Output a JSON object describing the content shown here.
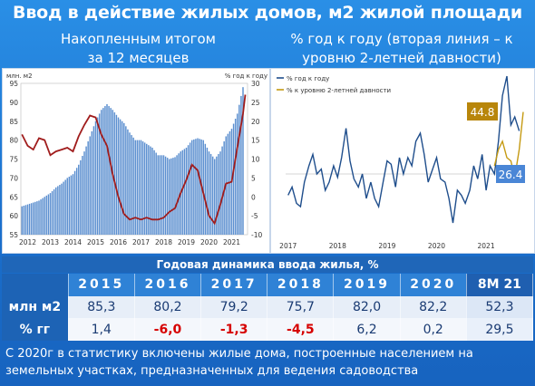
{
  "title": "Ввод в действие жилых домов, м2 жилой площади",
  "subtitle_left": [
    "Накопленным итогом",
    "за 12 месяцев"
  ],
  "subtitle_right": [
    "% год к году (вторая линия – к",
    "уровню 2-летней давности)"
  ],
  "colors": {
    "bars": "#5b8fd0",
    "left_line": "#a01c1c",
    "right_line_yoy": "#1f4e8c",
    "right_line_2y": "#c59a12",
    "callout_gold": "#b8860b",
    "callout_blue": "#4a86d6",
    "neg_text": "#d60000"
  },
  "chart_data": [
    {
      "type": "bar+line",
      "left_unit": "млн. м2",
      "right_unit": "% год к году",
      "left_ylim": [
        55,
        95
      ],
      "left_ticks": [
        "95",
        "90",
        "85",
        "80",
        "75",
        "70",
        "65",
        "60",
        "55"
      ],
      "right_ylim": [
        -10,
        30
      ],
      "right_ticks": [
        "30",
        "25",
        "20",
        "15",
        "10",
        "5",
        "0",
        "-5",
        "-10"
      ],
      "x_ticks": [
        "2012",
        "2013",
        "2014",
        "2015",
        "2016",
        "2017",
        "2018",
        "2019",
        "2020",
        "2021"
      ],
      "x_range": [
        2011.7,
        2021.7
      ],
      "bars_series": {
        "name": "млн. м2",
        "points": [
          [
            2011.75,
            62.5
          ],
          [
            2012.0,
            63
          ],
          [
            2012.25,
            63.5
          ],
          [
            2012.5,
            64
          ],
          [
            2012.75,
            65
          ],
          [
            2013.0,
            66
          ],
          [
            2013.25,
            67.5
          ],
          [
            2013.5,
            68.5
          ],
          [
            2013.75,
            70
          ],
          [
            2014.0,
            71
          ],
          [
            2014.25,
            73.5
          ],
          [
            2014.5,
            77
          ],
          [
            2014.75,
            81
          ],
          [
            2015.0,
            85
          ],
          [
            2015.25,
            88
          ],
          [
            2015.5,
            89.5
          ],
          [
            2015.75,
            88
          ],
          [
            2016.0,
            86
          ],
          [
            2016.25,
            84.5
          ],
          [
            2016.5,
            82
          ],
          [
            2016.75,
            80
          ],
          [
            2017.0,
            80
          ],
          [
            2017.25,
            79
          ],
          [
            2017.5,
            78
          ],
          [
            2017.75,
            76
          ],
          [
            2018.0,
            76
          ],
          [
            2018.25,
            75
          ],
          [
            2018.5,
            75.5
          ],
          [
            2018.75,
            77
          ],
          [
            2019.0,
            78
          ],
          [
            2019.25,
            80
          ],
          [
            2019.5,
            80.5
          ],
          [
            2019.75,
            80
          ],
          [
            2020.0,
            77
          ],
          [
            2020.25,
            75
          ],
          [
            2020.5,
            77
          ],
          [
            2020.75,
            81
          ],
          [
            2021.0,
            83
          ],
          [
            2021.25,
            87
          ],
          [
            2021.5,
            94
          ]
        ]
      },
      "line_series": {
        "name": "% год к году",
        "points": [
          [
            2011.75,
            16.5
          ],
          [
            2012.0,
            13.5
          ],
          [
            2012.25,
            12.5
          ],
          [
            2012.5,
            15.5
          ],
          [
            2012.75,
            15
          ],
          [
            2013.0,
            11
          ],
          [
            2013.25,
            12
          ],
          [
            2013.5,
            12.5
          ],
          [
            2013.75,
            13
          ],
          [
            2014.0,
            12
          ],
          [
            2014.25,
            16
          ],
          [
            2014.5,
            19
          ],
          [
            2014.75,
            21.5
          ],
          [
            2015.0,
            21
          ],
          [
            2015.25,
            16.5
          ],
          [
            2015.5,
            13.5
          ],
          [
            2015.75,
            6
          ],
          [
            2016.0,
            0
          ],
          [
            2016.25,
            -4.5
          ],
          [
            2016.5,
            -6
          ],
          [
            2016.75,
            -5.5
          ],
          [
            2017.0,
            -6
          ],
          [
            2017.25,
            -5.5
          ],
          [
            2017.5,
            -6
          ],
          [
            2017.75,
            -6
          ],
          [
            2018.0,
            -5.5
          ],
          [
            2018.25,
            -4
          ],
          [
            2018.5,
            -3
          ],
          [
            2018.75,
            1
          ],
          [
            2019.0,
            4.5
          ],
          [
            2019.25,
            8.5
          ],
          [
            2019.5,
            7
          ],
          [
            2019.75,
            1
          ],
          [
            2020.0,
            -5
          ],
          [
            2020.25,
            -7
          ],
          [
            2020.5,
            -2
          ],
          [
            2020.75,
            3.5
          ],
          [
            2021.0,
            4
          ],
          [
            2021.25,
            13
          ],
          [
            2021.5,
            22
          ],
          [
            2021.6,
            27
          ]
        ]
      }
    },
    {
      "type": "line",
      "ylim": [
        -40,
        60
      ],
      "x_ticks": [
        "2017",
        "2018",
        "2019",
        "2020",
        "2021"
      ],
      "x_range": [
        2016.95,
        2021.75
      ],
      "legend": [
        "% год к году",
        "% к уровню 2-летней давности"
      ],
      "series": [
        {
          "name": "% год к году",
          "points": [
            [
              2017.0,
              -13
            ],
            [
              2017.08,
              -8
            ],
            [
              2017.17,
              -18
            ],
            [
              2017.25,
              -20
            ],
            [
              2017.33,
              -5
            ],
            [
              2017.42,
              5
            ],
            [
              2017.5,
              12
            ],
            [
              2017.58,
              0
            ],
            [
              2017.67,
              3
            ],
            [
              2017.75,
              -10
            ],
            [
              2017.83,
              -5
            ],
            [
              2017.92,
              5
            ],
            [
              2018.0,
              -2
            ],
            [
              2018.08,
              10
            ],
            [
              2018.17,
              28
            ],
            [
              2018.25,
              8
            ],
            [
              2018.33,
              -3
            ],
            [
              2018.42,
              -8
            ],
            [
              2018.5,
              0
            ],
            [
              2018.58,
              -15
            ],
            [
              2018.67,
              -5
            ],
            [
              2018.75,
              -15
            ],
            [
              2018.83,
              -20
            ],
            [
              2018.92,
              -5
            ],
            [
              2019.0,
              8
            ],
            [
              2019.08,
              6
            ],
            [
              2019.17,
              -8
            ],
            [
              2019.25,
              10
            ],
            [
              2019.33,
              0
            ],
            [
              2019.42,
              10
            ],
            [
              2019.5,
              5
            ],
            [
              2019.58,
              20
            ],
            [
              2019.67,
              25
            ],
            [
              2019.75,
              12
            ],
            [
              2019.83,
              -5
            ],
            [
              2019.92,
              3
            ],
            [
              2020.0,
              10
            ],
            [
              2020.08,
              -3
            ],
            [
              2020.17,
              -5
            ],
            [
              2020.25,
              -15
            ],
            [
              2020.33,
              -30
            ],
            [
              2020.42,
              -10
            ],
            [
              2020.5,
              -13
            ],
            [
              2020.58,
              -18
            ],
            [
              2020.67,
              -10
            ],
            [
              2020.75,
              5
            ],
            [
              2020.83,
              -3
            ],
            [
              2020.92,
              12
            ],
            [
              2021.0,
              -10
            ],
            [
              2021.08,
              5
            ],
            [
              2021.17,
              0
            ],
            [
              2021.25,
              20
            ],
            [
              2021.33,
              48
            ],
            [
              2021.42,
              60
            ],
            [
              2021.5,
              30
            ],
            [
              2021.58,
              35
            ],
            [
              2021.67,
              26.4
            ]
          ]
        },
        {
          "name": "% к уровню 2-летней давности",
          "points": [
            [
              2021.17,
              5
            ],
            [
              2021.25,
              15
            ],
            [
              2021.33,
              20
            ],
            [
              2021.42,
              10
            ],
            [
              2021.5,
              8
            ],
            [
              2021.58,
              -2
            ],
            [
              2021.67,
              15
            ],
            [
              2021.75,
              38
            ]
          ]
        }
      ],
      "callouts": [
        "44.8",
        "26.4"
      ]
    }
  ],
  "table": {
    "title": "Годовая динамика ввода жилья, %",
    "years": [
      "2015",
      "2016",
      "2017",
      "2018",
      "2019",
      "2020",
      "8М 21"
    ],
    "rows": [
      {
        "label": "млн м2",
        "values": [
          "85,3",
          "80,2",
          "79,2",
          "75,7",
          "82,0",
          "82,2",
          "52,3"
        ]
      },
      {
        "label": "% гг",
        "values": [
          "1,4",
          "-6,0",
          "-1,3",
          "-4,5",
          "6,2",
          "0,2",
          "29,5"
        ]
      }
    ]
  },
  "footnote": "С 2020г в статистику включены жилые дома, построенные населением на земельных участках, предназначенных для ведения садоводства"
}
